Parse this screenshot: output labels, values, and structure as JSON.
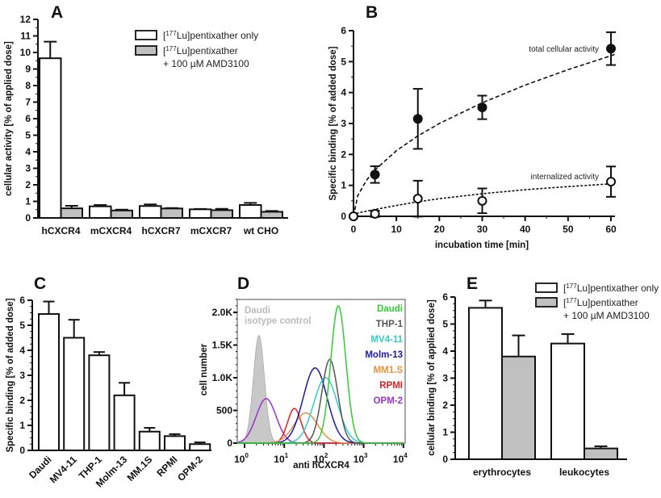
{
  "legend_ab": [
    {
      "prefix": "[",
      "sup": "177",
      "text": "Lu]pentixather only",
      "fill": "#ffffff"
    },
    {
      "prefix": "[",
      "sup": "177",
      "text": "Lu]pentixather",
      "text2": "+ 100 µM AMD3100",
      "fill": "#c0c0c0"
    }
  ],
  "chart_data": [
    {
      "panel": "A",
      "type": "bar",
      "ylabel": "cellular activity [% of applied dose]",
      "ylim": [
        0,
        12
      ],
      "yticks": [
        0,
        1,
        2,
        3,
        4,
        5,
        6,
        7,
        8,
        9,
        10,
        11,
        12
      ],
      "categories": [
        "hCXCR4",
        "mCXCR4",
        "hCXCR7",
        "mCXCR7",
        "wt CHO"
      ],
      "series": [
        {
          "name": "[177Lu]pentixather only",
          "color": "#ffffff",
          "values": [
            9.65,
            0.7,
            0.72,
            0.52,
            0.78
          ],
          "errors": [
            1.0,
            0.08,
            0.1,
            0.02,
            0.13
          ]
        },
        {
          "name": "[177Lu]pentixather + 100 µM AMD3100",
          "color": "#c0c0c0",
          "values": [
            0.58,
            0.45,
            0.57,
            0.47,
            0.37
          ],
          "errors": [
            0.15,
            0.05,
            0.03,
            0.08,
            0.05
          ]
        }
      ]
    },
    {
      "panel": "B",
      "type": "scatter",
      "xlabel": "incubation time [min]",
      "ylabel": "Specific binding [% of added dose]",
      "xlim": [
        0,
        60
      ],
      "ylim": [
        0,
        6
      ],
      "xticks": [
        0,
        10,
        20,
        30,
        40,
        50,
        60
      ],
      "yticks": [
        0,
        1,
        2,
        3,
        4,
        5,
        6
      ],
      "series": [
        {
          "name": "total cellular activity",
          "marker": "filled-circle",
          "x": [
            0,
            5,
            15,
            30,
            60
          ],
          "y": [
            0,
            1.35,
            3.15,
            3.52,
            5.42
          ],
          "errors": [
            0,
            0.27,
            0.97,
            0.38,
            0.53
          ],
          "fit": [
            [
              0,
              0
            ],
            [
              1,
              0.67
            ],
            [
              3,
              1.16
            ],
            [
              5,
              1.5
            ],
            [
              10,
              2.12
            ],
            [
              15,
              2.6
            ],
            [
              20,
              3.0
            ],
            [
              30,
              3.67
            ],
            [
              40,
              4.24
            ],
            [
              50,
              4.74
            ],
            [
              60,
              5.19
            ],
            [
              61,
              5.24
            ]
          ]
        },
        {
          "name": "internalized activity",
          "marker": "open-circle",
          "x": [
            0,
            5,
            15,
            30,
            60
          ],
          "y": [
            0,
            0.08,
            0.57,
            0.5,
            1.12
          ],
          "errors": [
            0,
            0.1,
            0.58,
            0.4,
            0.49
          ],
          "fit": [
            [
              0,
              0
            ],
            [
              1,
              0.11
            ],
            [
              5,
              0.22
            ],
            [
              10,
              0.35
            ],
            [
              15,
              0.47
            ],
            [
              20,
              0.57
            ],
            [
              30,
              0.73
            ],
            [
              40,
              0.86
            ],
            [
              50,
              0.96
            ],
            [
              60,
              1.05
            ],
            [
              61,
              1.06
            ]
          ]
        }
      ]
    },
    {
      "panel": "C",
      "type": "bar",
      "ylabel": "Specific binding [% of added dose]",
      "ylim": [
        0,
        6
      ],
      "yticks": [
        0,
        1,
        2,
        3,
        4,
        5,
        6
      ],
      "categories": [
        "Daudi",
        "MV4-11",
        "THP-1",
        "Molm-13",
        "MM.1S",
        "RPMI",
        "OPM-2"
      ],
      "series": [
        {
          "color": "#ffffff",
          "values": [
            5.45,
            4.5,
            3.8,
            2.2,
            0.75,
            0.57,
            0.25
          ],
          "errors": [
            0.5,
            0.72,
            0.13,
            0.5,
            0.15,
            0.08,
            0.07
          ]
        }
      ]
    },
    {
      "panel": "D",
      "type": "line",
      "xlabel": "anti hCXCR4",
      "ylabel": "cell number",
      "xscale": "log",
      "xlim": [
        0.63,
        10000
      ],
      "ylim": [
        0,
        2200
      ],
      "xticks": [
        {
          "base": "10",
          "exp": "0"
        },
        {
          "base": "10",
          "exp": "1"
        },
        {
          "base": "10",
          "exp": "2"
        },
        {
          "base": "10",
          "exp": "3"
        },
        {
          "base": "10",
          "exp": "4"
        }
      ],
      "yticks": [
        {
          "v": 0,
          "label": "0"
        },
        {
          "v": 500,
          "label": "500"
        },
        {
          "v": 1000,
          "label": "1.0K"
        },
        {
          "v": 1500,
          "label": "1.5K"
        },
        {
          "v": 2000,
          "label": "2.0K"
        }
      ],
      "isotype": {
        "label1": "Daudi",
        "label2": "isotype control",
        "color": "#c8c8c8",
        "peak": 2.3,
        "height": 1650,
        "width_decades": 0.14
      },
      "series": [
        {
          "name": "Daudi",
          "color": "#33cc33",
          "peak": 230,
          "height": 2100,
          "width_decades": 0.19
        },
        {
          "name": "THP-1",
          "color": "#555555",
          "peak": 140,
          "height": 1280,
          "width_decades": 0.2
        },
        {
          "name": "MV4-11",
          "color": "#33cccc",
          "peak": 110,
          "height": 1000,
          "width_decades": 0.3
        },
        {
          "name": "Molm-13",
          "color": "#1a1aaa",
          "peak": 60,
          "height": 1150,
          "width_decades": 0.3
        },
        {
          "name": "MM1.S",
          "color": "#e8913a",
          "peak": 35,
          "height": 460,
          "width_decades": 0.3
        },
        {
          "name": "RPMI",
          "color": "#dd2222",
          "peak": 18,
          "height": 530,
          "width_decades": 0.17
        },
        {
          "name": "OPM-2",
          "color": "#9933cc",
          "peak": 3.5,
          "height": 680,
          "width_decades": 0.25
        }
      ]
    },
    {
      "panel": "E",
      "type": "bar",
      "ylabel": "cellular binding [% of applied dose]",
      "ylim": [
        0,
        6
      ],
      "yticks": [
        0,
        1,
        2,
        3,
        4,
        5,
        6
      ],
      "categories": [
        "erythrocytes",
        "leukocytes"
      ],
      "series": [
        {
          "name": "[177Lu]pentixather only",
          "color": "#ffffff",
          "values": [
            5.6,
            4.28
          ],
          "errors": [
            0.27,
            0.35
          ]
        },
        {
          "name": "[177Lu]pentixather + 100 µM AMD3100",
          "color": "#c0c0c0",
          "values": [
            3.8,
            0.4
          ],
          "errors": [
            0.78,
            0.08
          ]
        }
      ]
    }
  ]
}
